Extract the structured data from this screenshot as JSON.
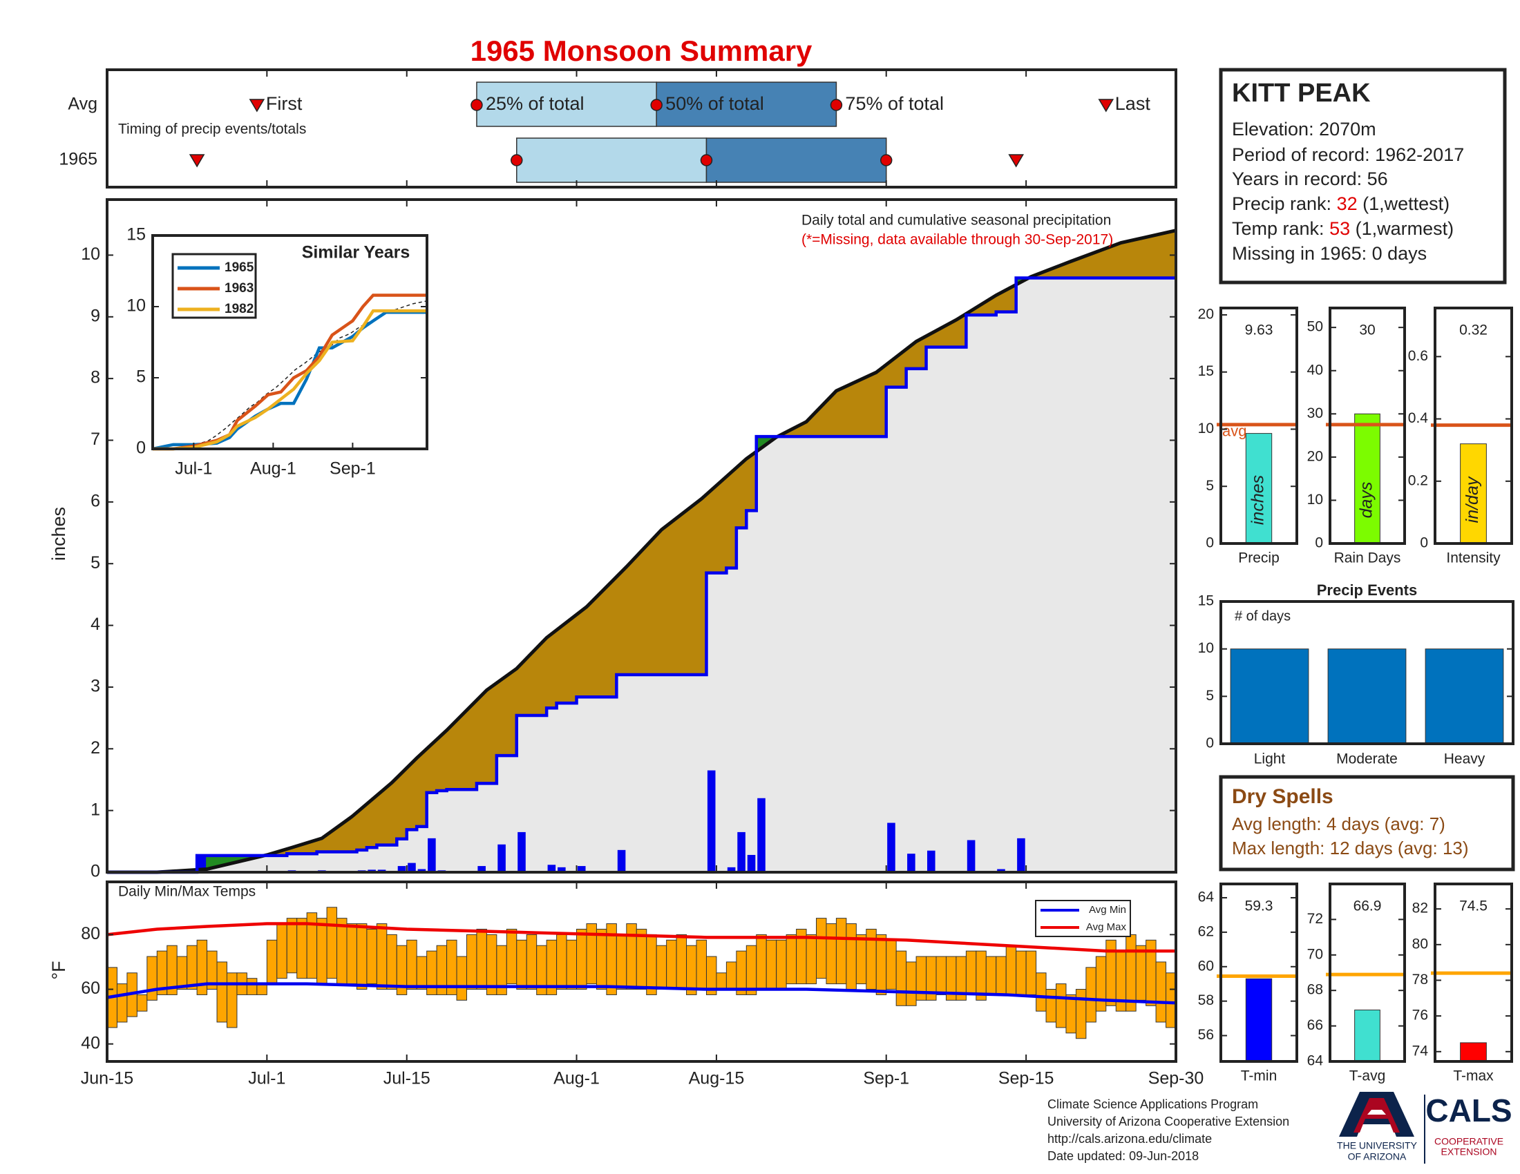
{
  "title": "1965 Monsoon Summary",
  "info": {
    "station": "KITT PEAK",
    "lines": [
      "Elevation: 2070m",
      "Period of record: 1962-2017",
      "Years in record: 56"
    ],
    "precip_rank": [
      "Precip rank: ",
      "32",
      " (1,wettest)"
    ],
    "temp_rank": [
      "Temp rank: ",
      "53",
      " (1,warmest)"
    ],
    "missing": "Missing in 1965: 0 days"
  },
  "dry_spells": {
    "title": "Dry Spells",
    "lines": [
      "Avg length: 4 days (avg: 7)",
      "Max length: 12 days (avg: 13)"
    ],
    "color": "#8b4a14"
  },
  "footer": [
    "Climate Science Applications Program",
    "University of Arizona Cooperative Extension",
    "http://cals.arizona.edu/climate",
    "Date updated: 09-Jun-2018"
  ],
  "logo": {
    "university": [
      "THE UNIVERSITY",
      "OF ARIZONA"
    ],
    "cals": "CALS",
    "extension": [
      "COOPERATIVE",
      "EXTENSION"
    ]
  },
  "chart_data": [
    {
      "type": "timing",
      "label": "Timing of precip events/totals",
      "labels": {
        "first": "First",
        "p25": "25% of total",
        "p50": "50% of total",
        "p75": "75% of total",
        "last": "Last"
      },
      "rows": [
        {
          "name": "Avg",
          "first": 15,
          "p25": 37,
          "p50": 55,
          "p75": 73,
          "last": 100
        },
        {
          "name": "1965",
          "first": 9,
          "p25": 41,
          "p50": 60,
          "p75": 78,
          "last": 91
        }
      ],
      "colors": {
        "early": "#b3d9ea",
        "late": "#4682b4",
        "marker": "#e00000"
      }
    },
    {
      "type": "cumulative",
      "title": "Daily total and cumulative seasonal precipitation",
      "subtitle": "(*=Missing, data available through 30-Sep-2017)",
      "ylabel": "inches",
      "xlim": [
        0,
        107
      ],
      "xticks": [
        {
          "value": 0,
          "label": "Jun-15"
        },
        {
          "value": 16,
          "label": "Jul-1"
        },
        {
          "value": 30,
          "label": "Jul-15"
        },
        {
          "value": 47,
          "label": "Aug-1"
        },
        {
          "value": 61,
          "label": "Aug-15"
        },
        {
          "value": 78,
          "label": "Sep-1"
        },
        {
          "value": 92,
          "label": "Sep-15"
        },
        {
          "value": 107,
          "label": "Sep-30"
        }
      ],
      "ylim": [
        0,
        10.9
      ],
      "yticks": [
        0,
        1,
        2,
        3,
        4,
        5,
        6,
        7,
        8,
        9,
        10
      ],
      "daily": {
        "color": "#0000ee",
        "x": [
          9,
          18,
          21,
          25,
          26,
          27,
          29,
          30,
          31,
          32,
          33,
          34,
          37,
          39,
          41,
          44,
          45,
          47,
          51,
          60,
          62,
          63,
          64,
          65,
          78,
          80,
          82,
          86,
          89,
          91
        ],
        "values": [
          0.27,
          0.03,
          0.03,
          0.03,
          0.04,
          0.04,
          0.1,
          0.15,
          0.05,
          0.55,
          0.03,
          0.02,
          0.1,
          0.45,
          0.65,
          0.12,
          0.08,
          0.1,
          0.36,
          1.65,
          0.08,
          0.65,
          0.28,
          1.2,
          0.8,
          0.3,
          0.35,
          0.52,
          0.05,
          0.55
        ]
      },
      "average": {
        "color": "#111111",
        "x": [
          0,
          5,
          10,
          16,
          18.5,
          21.5,
          24.5,
          28.5,
          31,
          34,
          38,
          41,
          44,
          48,
          52,
          55.5,
          59.5,
          64,
          67,
          70,
          73,
          77,
          81,
          85,
          89,
          92.5,
          96.5,
          101.5,
          107
        ],
        "values": [
          0,
          0,
          0.05,
          0.28,
          0.4,
          0.55,
          0.9,
          1.45,
          1.85,
          2.3,
          2.95,
          3.3,
          3.8,
          4.3,
          4.95,
          5.55,
          6.05,
          6.7,
          7.05,
          7.3,
          7.8,
          8.1,
          8.6,
          8.95,
          9.35,
          9.65,
          9.9,
          10.2,
          10.4
        ]
      },
      "colors": {
        "deficit": "#b8860b",
        "surplus": "#228b22",
        "base": "#e8e8e8"
      }
    },
    {
      "type": "line",
      "title": "Similar Years",
      "xlim": [
        0,
        107
      ],
      "ylim": [
        0,
        15
      ],
      "yticks": [
        0,
        5,
        10,
        15
      ],
      "xticks": [
        {
          "value": 16,
          "label": "Jul-1"
        },
        {
          "value": 47,
          "label": "Aug-1"
        },
        {
          "value": 78,
          "label": "Sep-1"
        }
      ],
      "x": [
        0,
        8,
        16,
        25,
        30,
        33,
        40,
        45,
        50,
        55,
        60,
        65,
        70,
        78,
        82,
        86,
        91,
        107
      ],
      "series": [
        {
          "name": "1965",
          "color": "#0072bd",
          "values": [
            0,
            0.3,
            0.3,
            0.4,
            0.8,
            1.4,
            2.3,
            2.8,
            3.2,
            3.2,
            4.9,
            7.1,
            7.1,
            7.9,
            8.5,
            9.0,
            9.6,
            9.6
          ]
        },
        {
          "name": "1963",
          "color": "#d95319",
          "values": [
            0,
            0,
            0.2,
            0.6,
            1,
            2,
            3,
            3.8,
            4,
            5,
            5.5,
            6.5,
            8,
            9,
            10,
            10.8,
            10.8,
            10.8
          ]
        },
        {
          "name": "1982",
          "color": "#edb120",
          "values": [
            0,
            0,
            0.1,
            0.5,
            1,
            1.6,
            2.2,
            2.8,
            3.5,
            4.2,
            5.3,
            6.2,
            7.5,
            7.6,
            8.6,
            9.7,
            9.7,
            9.7
          ]
        }
      ]
    },
    {
      "type": "range_bar",
      "title": "Daily Min/Max Temps",
      "ylabel": "°F",
      "ylim": [
        33.6,
        99.3
      ],
      "yticks": [
        40,
        60,
        80
      ],
      "color": "#ffa500",
      "max": [
        68,
        62,
        66,
        58,
        72,
        74,
        76,
        72,
        76,
        78,
        74,
        70,
        66,
        66,
        64,
        62,
        78,
        84,
        86,
        86,
        88,
        86,
        90,
        86,
        84,
        84,
        82,
        84,
        80,
        76,
        78,
        72,
        74,
        76,
        78,
        72,
        80,
        82,
        80,
        76,
        82,
        78,
        80,
        76,
        78,
        80,
        78,
        82,
        84,
        82,
        84,
        80,
        84,
        82,
        80,
        76,
        78,
        80,
        76,
        78,
        72,
        66,
        70,
        74,
        76,
        80,
        78,
        78,
        80,
        82,
        80,
        86,
        84,
        86,
        84,
        80,
        82,
        80,
        78,
        74,
        70,
        72,
        72,
        72,
        72,
        72,
        74,
        74,
        72,
        72,
        76,
        74,
        74,
        66,
        60,
        62,
        58,
        60,
        68,
        72,
        78,
        74,
        80,
        76,
        78,
        70,
        66
      ],
      "min": [
        46,
        48,
        50,
        52,
        56,
        58,
        58,
        60,
        60,
        58,
        60,
        48,
        46,
        58,
        58,
        58,
        62,
        64,
        66,
        64,
        64,
        62,
        64,
        62,
        62,
        60,
        62,
        60,
        60,
        58,
        60,
        60,
        58,
        58,
        58,
        56,
        60,
        60,
        58,
        58,
        62,
        60,
        60,
        58,
        58,
        60,
        60,
        60,
        62,
        60,
        58,
        60,
        60,
        60,
        58,
        60,
        60,
        60,
        58,
        60,
        58,
        60,
        60,
        58,
        58,
        60,
        60,
        60,
        62,
        62,
        62,
        64,
        62,
        62,
        60,
        62,
        60,
        58,
        60,
        54,
        54,
        56,
        56,
        58,
        56,
        56,
        58,
        56,
        58,
        58,
        58,
        58,
        58,
        52,
        48,
        46,
        44,
        42,
        48,
        52,
        54,
        52,
        52,
        56,
        54,
        48,
        46
      ],
      "series": [
        {
          "name": "Avg Min",
          "color": "#0000ee",
          "x": [
            0,
            5,
            10,
            20,
            30,
            40,
            50,
            60,
            70,
            80,
            90,
            95,
            100,
            107
          ],
          "values": [
            57,
            60,
            62,
            62,
            61,
            61,
            61,
            60,
            60,
            59,
            58,
            57,
            56,
            55
          ]
        },
        {
          "name": "Avg Max",
          "color": "#ee0000",
          "x": [
            0,
            5,
            10,
            16,
            20,
            30,
            40,
            50,
            60,
            70,
            80,
            85,
            90,
            95,
            100,
            107
          ],
          "values": [
            80,
            82,
            83,
            84,
            84,
            82,
            81,
            80,
            79,
            79,
            78,
            77,
            76,
            75,
            74,
            74
          ]
        }
      ]
    },
    {
      "type": "bar_avg",
      "label": "Precip",
      "unit": "inches",
      "value": 9.63,
      "avg": 10.4,
      "avg_label": "avg",
      "color": "#40e0d0",
      "avg_color": "#d9541a",
      "ylim": [
        0,
        20.6
      ],
      "yticks": [
        0,
        5,
        10,
        15,
        20
      ]
    },
    {
      "type": "bar_avg",
      "label": "Rain Days",
      "unit": "days",
      "value": 30,
      "avg": 27.5,
      "color": "#7cfc00",
      "avg_color": "#d9541a",
      "ylim": [
        0,
        54.5
      ],
      "yticks": [
        0,
        10,
        20,
        30,
        40,
        50
      ]
    },
    {
      "type": "bar_avg",
      "label": "Intensity",
      "unit": "in/day",
      "value": 0.32,
      "avg": 0.38,
      "color": "#ffd700",
      "avg_color": "#d9541a",
      "ylim": [
        0,
        0.756
      ],
      "yticks": [
        0,
        0.2,
        0.4,
        0.6
      ]
    },
    {
      "type": "bar",
      "title": "Precip Events",
      "ylabel": "# of days",
      "categories": [
        "Light",
        "Moderate",
        "Heavy"
      ],
      "values": [
        10,
        10,
        10
      ],
      "color": "#0072bd",
      "ylim": [
        0,
        15
      ],
      "yticks": [
        0,
        5,
        10,
        15
      ]
    },
    {
      "type": "bar_avg",
      "label": "T-min",
      "value": 59.3,
      "avg": 59.45,
      "color": "#0000ff",
      "avg_color": "#ffa500",
      "ylim": [
        54.5,
        64.8
      ],
      "yticks": [
        56,
        58,
        60,
        62,
        64
      ]
    },
    {
      "type": "bar_avg",
      "label": "T-avg",
      "value": 66.9,
      "avg": 68.9,
      "color": "#40e0d0",
      "avg_color": "#ffa500",
      "ylim": [
        64,
        74
      ],
      "yticks": [
        64,
        66,
        68,
        70,
        72
      ]
    },
    {
      "type": "bar_avg",
      "label": "T-max",
      "value": 74.5,
      "avg": 78.4,
      "color": "#ff0000",
      "avg_color": "#ffa500",
      "ylim": [
        73.45,
        83.4
      ],
      "yticks": [
        74,
        76,
        78,
        80,
        82
      ]
    }
  ]
}
